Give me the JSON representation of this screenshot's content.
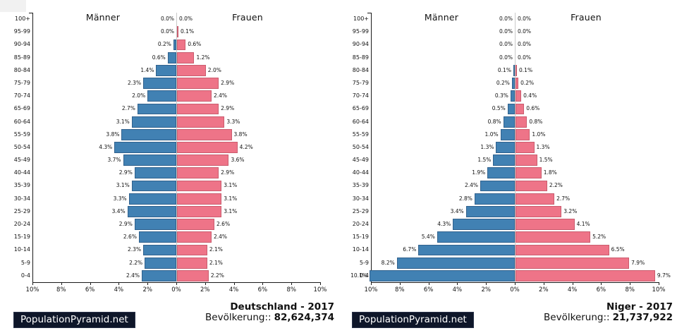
{
  "brand": {
    "label": "PopulationPyramid.net"
  },
  "colors": {
    "male": "#4181b3",
    "female": "#ee7488",
    "male_border": "#30618d",
    "female_border": "#ca5c6e",
    "axis": "#1a1a1a",
    "brand_bg": "#0e1629",
    "brand_text": "#ffffff"
  },
  "chart_data": [
    {
      "type": "bar",
      "subtype": "population-pyramid",
      "title": "Deutschland - 2017",
      "population_label": "Bevölkerung::",
      "population_value": "82,624,374",
      "left_header": "Männer",
      "right_header": "Frauen",
      "value_suffix": "%",
      "xlim": [
        -10,
        10
      ],
      "x_ticks": [
        "10%",
        "8%",
        "6%",
        "4%",
        "2%",
        "0%",
        "2%",
        "4%",
        "6%",
        "8%",
        "10%"
      ],
      "categories": [
        "100+",
        "95-99",
        "90-94",
        "85-89",
        "80-84",
        "75-79",
        "70-74",
        "65-69",
        "60-64",
        "55-59",
        "50-54",
        "45-49",
        "40-44",
        "35-39",
        "30-34",
        "25-29",
        "20-24",
        "15-19",
        "10-14",
        "5-9",
        "0-4"
      ],
      "series": [
        {
          "name": "Männer",
          "side": "left",
          "values": [
            0.0,
            0.0,
            0.2,
            0.6,
            1.4,
            2.3,
            2.0,
            2.7,
            3.1,
            3.8,
            4.3,
            3.7,
            2.9,
            3.1,
            3.3,
            3.4,
            2.9,
            2.6,
            2.3,
            2.2,
            2.4
          ]
        },
        {
          "name": "Frauen",
          "side": "right",
          "values": [
            0.0,
            0.1,
            0.6,
            1.2,
            2.0,
            2.9,
            2.4,
            2.9,
            3.3,
            3.8,
            4.2,
            3.6,
            2.9,
            3.1,
            3.1,
            3.1,
            2.6,
            2.4,
            2.1,
            2.1,
            2.2
          ]
        }
      ]
    },
    {
      "type": "bar",
      "subtype": "population-pyramid",
      "title": "Niger - 2017",
      "population_label": "Bevölkerung::",
      "population_value": "21,737,922",
      "left_header": "Männer",
      "right_header": "Frauen",
      "value_suffix": "%",
      "xlim": [
        -10,
        10
      ],
      "x_ticks": [
        "10%",
        "8%",
        "6%",
        "4%",
        "2%",
        "0%",
        "2%",
        "4%",
        "6%",
        "8%",
        "10%"
      ],
      "categories": [
        "100+",
        "95-99",
        "90-94",
        "85-89",
        "80-84",
        "75-79",
        "70-74",
        "65-69",
        "60-64",
        "55-59",
        "50-54",
        "45-49",
        "40-44",
        "35-39",
        "30-34",
        "25-29",
        "20-24",
        "15-19",
        "10-14",
        "5-9",
        "0-4"
      ],
      "series": [
        {
          "name": "Männer",
          "side": "left",
          "values": [
            0.0,
            0.0,
            0.0,
            0.0,
            0.1,
            0.2,
            0.3,
            0.5,
            0.8,
            1.0,
            1.3,
            1.5,
            1.9,
            2.4,
            2.8,
            3.4,
            4.3,
            5.4,
            6.7,
            8.2,
            10.1
          ]
        },
        {
          "name": "Frauen",
          "side": "right",
          "values": [
            0.0,
            0.0,
            0.0,
            0.0,
            0.1,
            0.2,
            0.4,
            0.6,
            0.8,
            1.0,
            1.3,
            1.5,
            1.8,
            2.2,
            2.7,
            3.2,
            4.1,
            5.2,
            6.5,
            7.9,
            9.7
          ]
        }
      ]
    }
  ]
}
